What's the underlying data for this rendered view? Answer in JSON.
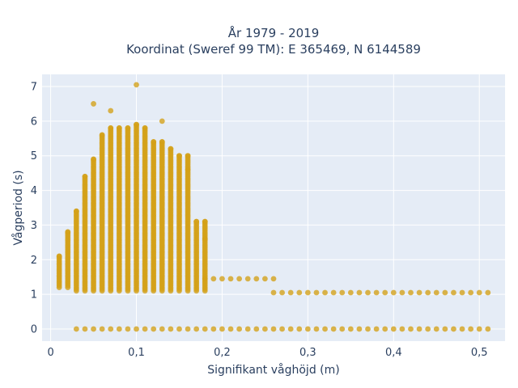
{
  "chart_data": {
    "type": "scatter",
    "title_lines": [
      "År 1979 - 2019",
      "Koordinat (Sweref 99 TM): E 365469, N 6144589"
    ],
    "xlabel": "Signifikant våghöjd (m)",
    "ylabel": "Vågperiod (s)",
    "xlim": [
      -0.01,
      0.53
    ],
    "ylim": [
      -0.35,
      7.35
    ],
    "x_ticks": [
      0,
      0.1,
      0.2,
      0.3,
      0.4,
      0.5
    ],
    "x_tick_labels": [
      "0",
      "0,1",
      "0,2",
      "0,3",
      "0,4",
      "0,5"
    ],
    "y_ticks": [
      0,
      1,
      2,
      3,
      4,
      5,
      6,
      7
    ],
    "y_tick_labels": [
      "0",
      "1",
      "2",
      "3",
      "4",
      "5",
      "6",
      "7"
    ],
    "grid": true,
    "legend": "none",
    "series": [
      {
        "color": "#d4a017",
        "columns": [
          {
            "x": 0.01,
            "y_min": 1.2,
            "y_max": 2.1
          },
          {
            "x": 0.02,
            "y_min": 1.2,
            "y_max": 2.8
          },
          {
            "x": 0.03,
            "y_min": 1.1,
            "y_max": 3.4
          },
          {
            "x": 0.04,
            "y_min": 1.1,
            "y_max": 4.4
          },
          {
            "x": 0.05,
            "y_min": 1.1,
            "y_max": 4.9
          },
          {
            "x": 0.06,
            "y_min": 1.1,
            "y_max": 5.6
          },
          {
            "x": 0.07,
            "y_min": 1.1,
            "y_max": 5.8
          },
          {
            "x": 0.08,
            "y_min": 1.1,
            "y_max": 5.8
          },
          {
            "x": 0.09,
            "y_min": 1.1,
            "y_max": 5.8
          },
          {
            "x": 0.1,
            "y_min": 1.1,
            "y_max": 5.9
          },
          {
            "x": 0.11,
            "y_min": 1.1,
            "y_max": 5.8
          },
          {
            "x": 0.12,
            "y_min": 1.1,
            "y_max": 5.4
          },
          {
            "x": 0.13,
            "y_min": 1.1,
            "y_max": 5.4
          },
          {
            "x": 0.14,
            "y_min": 1.1,
            "y_max": 5.2
          },
          {
            "x": 0.15,
            "y_min": 1.1,
            "y_max": 5.0
          },
          {
            "x": 0.16,
            "y_min": 1.1,
            "y_max": 5.0
          },
          {
            "x": 0.17,
            "y_min": 1.1,
            "y_max": 3.1
          },
          {
            "x": 0.18,
            "y_min": 1.1,
            "y_max": 3.1
          }
        ],
        "zero_row": {
          "x_min": 0.03,
          "x_max": 0.51,
          "y": 0
        },
        "low_rows": [
          {
            "x_min": 0.18,
            "x_max": 0.26,
            "y": 1.45
          },
          {
            "x_min": 0.26,
            "x_max": 0.51,
            "y": 1.05
          }
        ],
        "outliers": [
          {
            "x": 0.05,
            "y": 6.5
          },
          {
            "x": 0.07,
            "y": 6.3
          },
          {
            "x": 0.1,
            "y": 7.05
          },
          {
            "x": 0.13,
            "y": 6.0
          },
          {
            "x": 0.16,
            "y": 4.6
          },
          {
            "x": 0.18,
            "y": 2.6
          }
        ]
      }
    ]
  }
}
